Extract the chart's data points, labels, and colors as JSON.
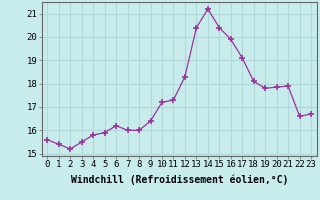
{
  "x": [
    0,
    1,
    2,
    3,
    4,
    5,
    6,
    7,
    8,
    9,
    10,
    11,
    12,
    13,
    14,
    15,
    16,
    17,
    18,
    19,
    20,
    21,
    22,
    23
  ],
  "y": [
    15.6,
    15.4,
    15.2,
    15.5,
    15.8,
    15.9,
    16.2,
    16.0,
    16.0,
    16.4,
    17.2,
    17.3,
    18.3,
    20.4,
    21.2,
    20.4,
    19.9,
    19.1,
    18.1,
    17.8,
    17.85,
    17.9,
    16.6,
    16.7
  ],
  "line_color": "#993399",
  "marker": "+",
  "marker_size": 4,
  "marker_lw": 1.2,
  "bg_color": "#c8ecec",
  "grid_color": "#b0d8d8",
  "xlabel": "Windchill (Refroidissement éolien,°C)",
  "xlabel_fontsize": 7,
  "tick_fontsize": 6.5,
  "xlim": [
    -0.5,
    23.5
  ],
  "ylim": [
    14.9,
    21.5
  ],
  "yticks": [
    15,
    16,
    17,
    18,
    19,
    20,
    21
  ],
  "xticks": [
    0,
    1,
    2,
    3,
    4,
    5,
    6,
    7,
    8,
    9,
    10,
    11,
    12,
    13,
    14,
    15,
    16,
    17,
    18,
    19,
    20,
    21,
    22,
    23
  ]
}
